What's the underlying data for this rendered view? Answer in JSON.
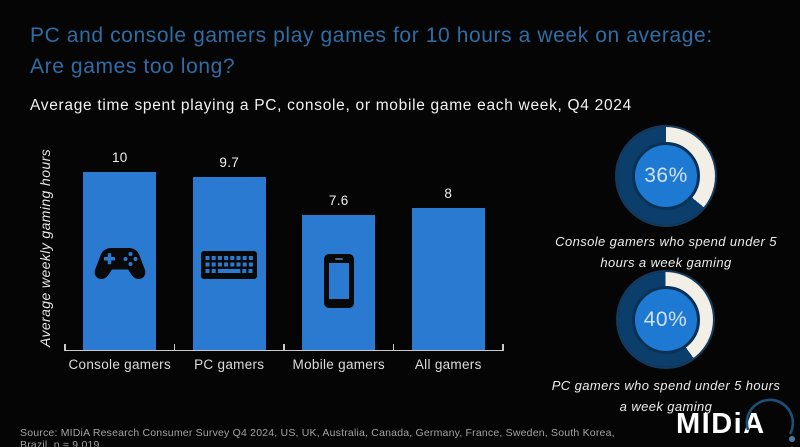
{
  "header": {
    "title_line1": "PC and console gamers play games for 10 hours a week on average:",
    "title_line2": "Are games too long?",
    "subtitle": "Average time spent playing a PC, console, or mobile game each week, Q4 2024"
  },
  "colors": {
    "background": "#050505",
    "title_blue": "#2e6da6",
    "bar_blue": "#2b7ad1",
    "donut_inner_blue": "#1e79d2",
    "donut_ring_navy": "#0b3e6b",
    "donut_arc_white": "#f2efe6",
    "axis_gray": "#c9c9c9",
    "icon_black": "#090909"
  },
  "chart_data": [
    {
      "type": "bar",
      "title": "Average time spent playing a PC, console, or mobile game each week, Q4 2024",
      "categories": [
        "Console gamers",
        "PC gamers",
        "Mobile gamers",
        "All gamers"
      ],
      "values": [
        10,
        9.7,
        7.6,
        8
      ],
      "value_labels": [
        "10",
        "9.7",
        "7.6",
        "8"
      ],
      "ylabel": "Average weekly gaming hours",
      "xlabel": "",
      "ylim": [
        0,
        10.5
      ],
      "grid": false,
      "legend": false,
      "icons": [
        "gamepad-icon",
        "keyboard-icon",
        "smartphone-icon",
        null
      ]
    },
    {
      "type": "donut",
      "value": 36,
      "value_label": "36%",
      "caption_line1": "Console gamers who spend under 5",
      "caption_line2": "hours a week gaming"
    },
    {
      "type": "donut",
      "value": 40,
      "value_label": "40%",
      "caption_line1": "PC gamers who spend under 5 hours",
      "caption_line2": "a week gaming"
    }
  ],
  "footer": {
    "source": "Source: MIDiA Research Consumer Survey Q4 2024, US, UK, Australia, Canada, Germany, France, Sweden, South Korea, Brazil, n = 9,019",
    "logo_text": "MIDiA"
  }
}
